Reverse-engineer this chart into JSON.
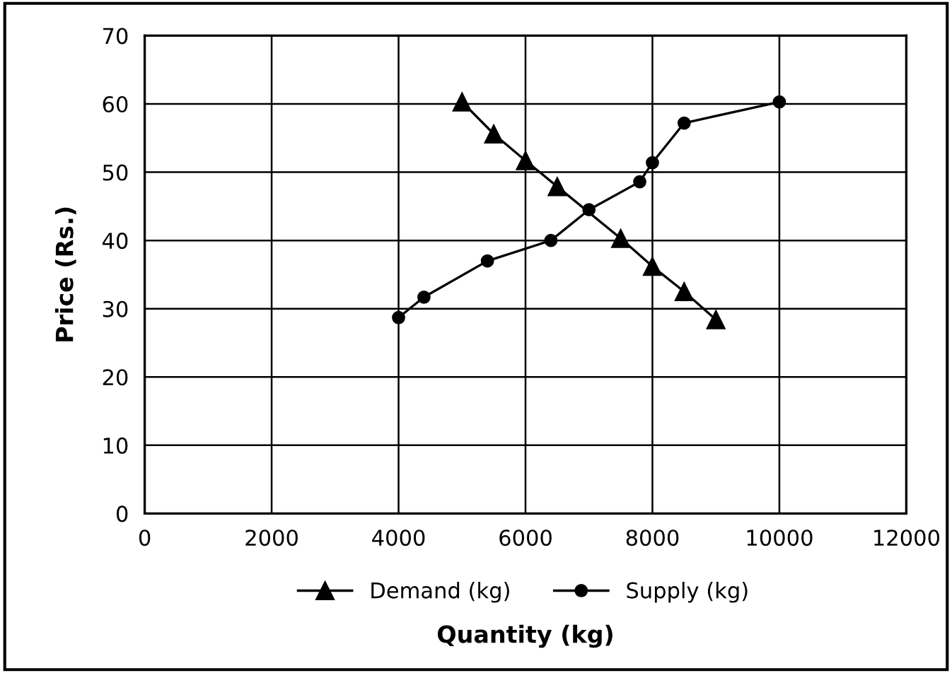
{
  "chart_data": {
    "type": "line",
    "xlabel": "Quantity (kg)",
    "ylabel": "Price (Rs.)",
    "xlim": [
      0,
      12000
    ],
    "xticks": [
      0,
      2000,
      4000,
      6000,
      8000,
      10000,
      12000
    ],
    "ylim": [
      0,
      70
    ],
    "yticks": [
      0,
      10,
      20,
      30,
      40,
      50,
      60,
      70
    ],
    "grid": true,
    "legend": "bottom",
    "series": [
      {
        "name": "Demand (kg)",
        "color": "#000000",
        "marker": "triangle",
        "x": [
          5000,
          5500,
          6000,
          6500,
          7500,
          8000,
          8500,
          9000
        ],
        "values": [
          60.3,
          55.6,
          51.7,
          47.9,
          40.3,
          36.2,
          32.5,
          28.4
        ]
      },
      {
        "name": "Supply (kg)",
        "color": "#000000",
        "marker": "circle",
        "x": [
          4000,
          4400,
          5400,
          6400,
          7000,
          7800,
          8000,
          8500,
          10000
        ],
        "values": [
          28.7,
          31.7,
          37,
          40,
          44.5,
          48.6,
          51.4,
          57.2,
          60.3
        ]
      }
    ]
  }
}
